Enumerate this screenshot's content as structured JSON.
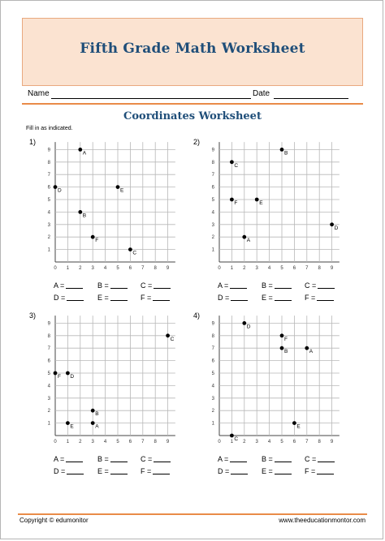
{
  "header": {
    "title": "Fifth Grade Math Worksheet"
  },
  "name_row": {
    "name_label": "Name",
    "date_label": "Date"
  },
  "subtitle": "Coordinates Worksheet",
  "instructions": "Fill in as indicated.",
  "colors": {
    "title": "#1f4e79",
    "banner_bg": "#fbe3d1",
    "rule": "#e98b48"
  },
  "answer_labels": [
    "A =",
    "B =",
    "C =",
    "D =",
    "E =",
    "F ="
  ],
  "problems": [
    {
      "number": "1)",
      "points": [
        {
          "label": "A",
          "x": 2,
          "y": 9
        },
        {
          "label": "B",
          "x": 2,
          "y": 4
        },
        {
          "label": "C",
          "x": 6,
          "y": 1
        },
        {
          "label": "D",
          "x": 0,
          "y": 6
        },
        {
          "label": "E",
          "x": 5,
          "y": 6
        },
        {
          "label": "F",
          "x": 3,
          "y": 2
        }
      ]
    },
    {
      "number": "2)",
      "points": [
        {
          "label": "A",
          "x": 2,
          "y": 2
        },
        {
          "label": "B",
          "x": 5,
          "y": 9
        },
        {
          "label": "C",
          "x": 1,
          "y": 8
        },
        {
          "label": "D",
          "x": 9,
          "y": 3
        },
        {
          "label": "E",
          "x": 3,
          "y": 5
        },
        {
          "label": "F",
          "x": 1,
          "y": 5
        }
      ]
    },
    {
      "number": "3)",
      "points": [
        {
          "label": "A",
          "x": 3,
          "y": 1
        },
        {
          "label": "B",
          "x": 3,
          "y": 2
        },
        {
          "label": "C",
          "x": 9,
          "y": 8
        },
        {
          "label": "D",
          "x": 1,
          "y": 5
        },
        {
          "label": "E",
          "x": 1,
          "y": 1
        },
        {
          "label": "F",
          "x": 0,
          "y": 5
        }
      ]
    },
    {
      "number": "4)",
      "points": [
        {
          "label": "A",
          "x": 7,
          "y": 7
        },
        {
          "label": "B",
          "x": 5,
          "y": 7
        },
        {
          "label": "C",
          "x": 1,
          "y": 0
        },
        {
          "label": "D",
          "x": 2,
          "y": 9
        },
        {
          "label": "E",
          "x": 6,
          "y": 1
        },
        {
          "label": "F",
          "x": 5,
          "y": 8
        }
      ]
    }
  ],
  "footer": {
    "copyright": "Copyright © edumonitor",
    "site": "www.theeducationmontor.com"
  }
}
